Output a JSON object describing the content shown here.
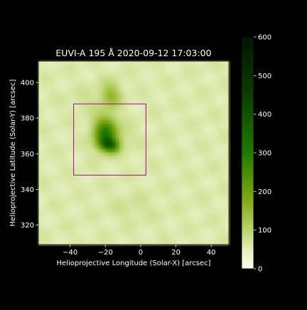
{
  "chart_data": {
    "type": "heatmap",
    "title": "EUVI-A 195 Å 2020-09-12 17:03:00",
    "xlabel": "Helioprojective Longitude (Solar-X) [arcsec]",
    "ylabel": "Helioprojective Latitude (Solar-Y) [arcsec]",
    "xlim": [
      -58,
      50
    ],
    "ylim": [
      309,
      412
    ],
    "xticks": [
      -40,
      -20,
      0,
      20,
      40
    ],
    "xtick_labels": [
      "−40",
      "−20",
      "0",
      "20",
      "40"
    ],
    "yticks": [
      320,
      340,
      360,
      380,
      400
    ],
    "ytick_labels": [
      "320",
      "340",
      "360",
      "380",
      "400"
    ],
    "colorbar": {
      "range": [
        0,
        600
      ],
      "ticks": [
        0,
        100,
        200,
        300,
        400,
        500,
        600
      ],
      "tick_labels": [
        "0",
        "100",
        "200",
        "300",
        "400",
        "500",
        "600"
      ],
      "colormap": "yellow-green (sdoaia/EUVI 195 style)"
    },
    "background_level": 60,
    "emission_blobs": [
      {
        "x": -20,
        "y": 372,
        "sx": 4.5,
        "sy": 6,
        "peak": 230
      },
      {
        "x": -19,
        "y": 366,
        "sx": 3.5,
        "sy": 2.5,
        "peak": 170
      },
      {
        "x": -16,
        "y": 364,
        "sx": 3,
        "sy": 2.5,
        "peak": 130
      },
      {
        "x": -17,
        "y": 393,
        "sx": 4,
        "sy": 5,
        "peak": 90
      },
      {
        "x": -10,
        "y": 370,
        "sx": 5,
        "sy": 5,
        "peak": 20
      },
      {
        "x": -30,
        "y": 390,
        "sx": 7,
        "sy": 5,
        "peak": 15
      },
      {
        "x": -5,
        "y": 330,
        "sx": 9,
        "sy": 5,
        "peak": 15
      }
    ],
    "box": {
      "x_range": [
        -38,
        3
      ],
      "y_range": [
        348,
        388
      ],
      "color": "#b000a0"
    }
  }
}
